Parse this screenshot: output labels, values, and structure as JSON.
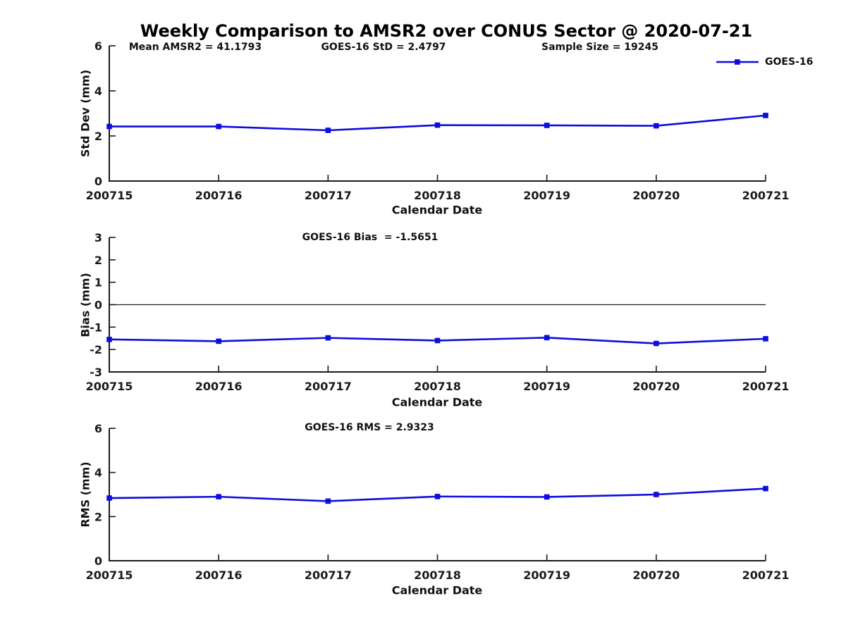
{
  "figure": {
    "title": "Weekly Comparison to AMSR2 over CONUS Sector @ 2020-07-21",
    "background": "#ffffff"
  },
  "colors": {
    "line": "#0d0ddd",
    "axis": "#1a1a1a",
    "text": "#1a1a1a"
  },
  "legend": {
    "label": "GOES-16"
  },
  "chart_data": [
    {
      "type": "line",
      "subplot": "std-dev",
      "annotations": [
        "Mean AMSR2 = 41.1793",
        "GOES-16 StD = 2.4797",
        "Sample Size = 19245"
      ],
      "xlabel": "Calendar Date",
      "ylabel": "Std Dev (mm)",
      "categories": [
        "200715",
        "200716",
        "200717",
        "200718",
        "200719",
        "200720",
        "200721"
      ],
      "series": [
        {
          "name": "GOES-16",
          "values": [
            2.42,
            2.42,
            2.25,
            2.48,
            2.47,
            2.45,
            2.91
          ]
        }
      ],
      "ylim": [
        0,
        6
      ],
      "yticks": [
        0,
        2,
        4,
        6
      ],
      "zero_line": false,
      "grid": false,
      "legend_position": "top-right"
    },
    {
      "type": "line",
      "subplot": "bias",
      "annotations": [
        "GOES-16 Bias  = -1.5651"
      ],
      "xlabel": "Calendar Date",
      "ylabel": "Bias (mm)",
      "categories": [
        "200715",
        "200716",
        "200717",
        "200718",
        "200719",
        "200720",
        "200721"
      ],
      "series": [
        {
          "name": "GOES-16",
          "values": [
            -1.55,
            -1.63,
            -1.48,
            -1.6,
            -1.47,
            -1.73,
            -1.52
          ]
        }
      ],
      "ylim": [
        -3,
        3
      ],
      "yticks": [
        -3,
        -2,
        -1,
        0,
        1,
        2,
        3
      ],
      "zero_line": true,
      "grid": false,
      "legend_position": "none"
    },
    {
      "type": "line",
      "subplot": "rms",
      "annotations": [
        "GOES-16 RMS = 2.9323"
      ],
      "xlabel": "Calendar Date",
      "ylabel": "RMS (mm)",
      "categories": [
        "200715",
        "200716",
        "200717",
        "200718",
        "200719",
        "200720",
        "200721"
      ],
      "series": [
        {
          "name": "GOES-16",
          "values": [
            2.84,
            2.9,
            2.7,
            2.91,
            2.89,
            3.0,
            3.27
          ]
        }
      ],
      "ylim": [
        0,
        6
      ],
      "yticks": [
        0,
        2,
        4,
        6
      ],
      "zero_line": false,
      "grid": false,
      "legend_position": "none"
    }
  ]
}
